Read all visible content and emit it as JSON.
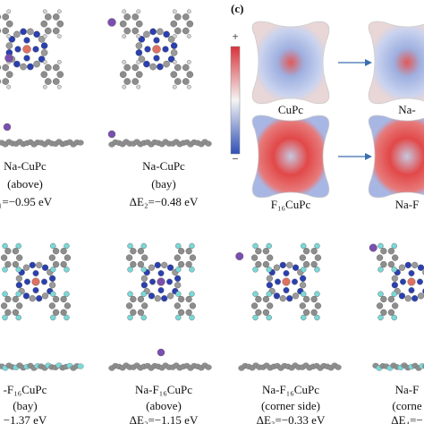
{
  "top": [
    {
      "name": "Na-CuPc",
      "site": "(above)",
      "energy": "₁=−0.95 eV"
    },
    {
      "name": "Na-CuPc",
      "site": "(bay)",
      "energy": "ΔE₂=−0.48 eV"
    }
  ],
  "bottom": [
    {
      "name": "-F₁₆CuPc",
      "site": "(bay)",
      "energy": "−1.37 eV"
    },
    {
      "name": "Na-F₁₆CuPc",
      "site": "(above)",
      "energy": "ΔE₂=−1.15 eV"
    },
    {
      "name": "Na-F₁₆CuPc",
      "site": "(corner side)",
      "energy": "ΔE₃=−0.33 eV"
    },
    {
      "name": "Na-F",
      "site": "(corne",
      "energy": "ΔE₄=−"
    }
  ],
  "esp": {
    "label": "(c)",
    "plus": "+",
    "minus": "−",
    "labels": [
      "CuPc",
      "Na-",
      "F₁₆CuPc",
      "Na-F"
    ]
  }
}
